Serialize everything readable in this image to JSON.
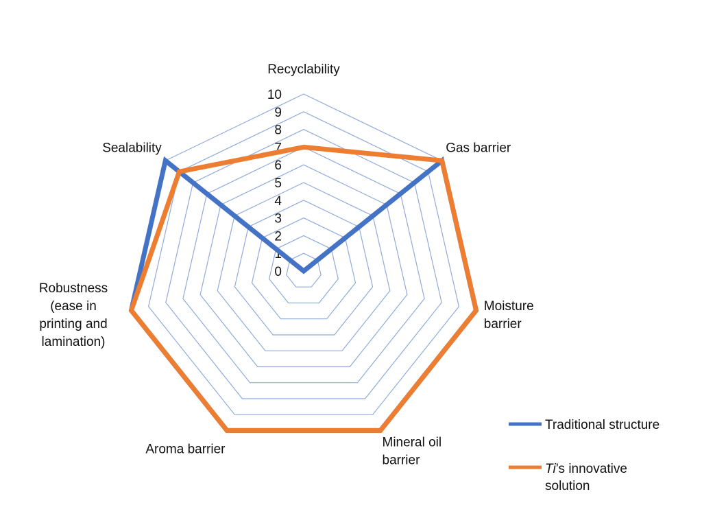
{
  "chart_data": {
    "type": "radar",
    "categories": [
      "Recyclability",
      "Gas barrier",
      "Moisture barrier",
      "Mineral oil barrier",
      "Aroma barrier",
      "Robustness (ease in printing and lamination)",
      "Sealability"
    ],
    "category_label_lines": [
      [
        "Recyclability"
      ],
      [
        "Gas barrier"
      ],
      [
        "Moisture",
        "barrier"
      ],
      [
        "Mineral oil",
        "barrier"
      ],
      [
        "Aroma barrier"
      ],
      [
        "Robustness",
        "(ease in",
        "printing and",
        "lamination)"
      ],
      [
        "Sealability"
      ]
    ],
    "rlim": [
      0,
      10
    ],
    "ticks": [
      "0",
      "1",
      "2",
      "3",
      "4",
      "5",
      "6",
      "7",
      "8",
      "9",
      "10"
    ],
    "grid": true,
    "legend_position": "bottom-right",
    "series": [
      {
        "name": "Traditional structure",
        "color": "#4472c4",
        "values": [
          0,
          10,
          10,
          10,
          10,
          10,
          10
        ]
      },
      {
        "name": "Ti's innovative solution",
        "name_italic_part": "Ti",
        "name_rest": "’s innovative",
        "name_line2": "solution",
        "color": "#ed7d31",
        "values": [
          7,
          10,
          10,
          10,
          10,
          10,
          9
        ]
      }
    ]
  }
}
